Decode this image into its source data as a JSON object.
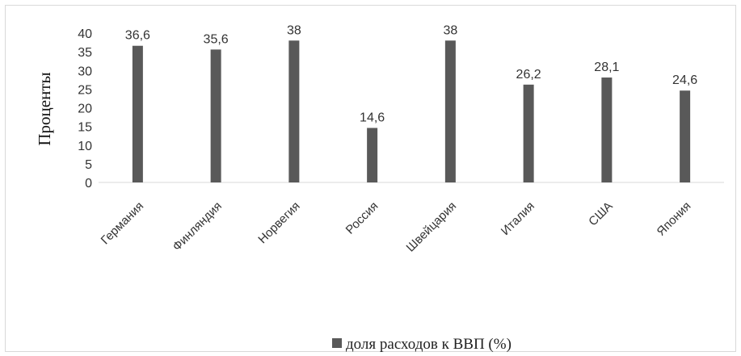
{
  "chart_data": {
    "type": "bar",
    "categories": [
      "Германия",
      "Финляндия",
      "Норвегия",
      "Россия",
      "Швейцария",
      "Италия",
      "США",
      "Япония"
    ],
    "series": [
      {
        "name": "доля расходов к ВВП (%)",
        "values": [
          36.6,
          35.6,
          38,
          14.6,
          38,
          26.2,
          28.1,
          24.6
        ],
        "color": "#595959"
      }
    ],
    "data_labels": [
      "36,6",
      "35,6",
      "38",
      "14,6",
      "38",
      "26,2",
      "28,1",
      "24,6"
    ],
    "y_ticks": [
      "0",
      "5",
      "10",
      "15",
      "20",
      "25",
      "30",
      "35",
      "40"
    ],
    "ylabel": "Проценты",
    "xlabel": "",
    "ylim": [
      0,
      40
    ],
    "grid": false,
    "legend_position": "bottom"
  }
}
